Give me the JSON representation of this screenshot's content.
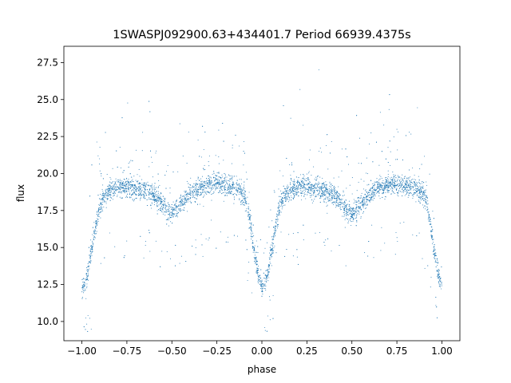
{
  "chart_data": {
    "type": "scatter",
    "title": "1SWASPJ092900.63+434401.7 Period 66939.4375s",
    "xlabel": "phase",
    "ylabel": "flux",
    "xlim": [
      -1.1,
      1.1
    ],
    "ylim": [
      8.7,
      28.6
    ],
    "xticks": [
      -1.0,
      -0.75,
      -0.5,
      -0.25,
      0.0,
      0.25,
      0.5,
      0.75,
      1.0
    ],
    "xtick_labels": [
      "−1.00",
      "−0.75",
      "−0.50",
      "−0.25",
      "0.00",
      "0.25",
      "0.50",
      "0.75",
      "1.00"
    ],
    "yticks": [
      10.0,
      12.5,
      15.0,
      17.5,
      20.0,
      22.5,
      25.0,
      27.5
    ],
    "ytick_labels": [
      "10.0",
      "12.5",
      "15.0",
      "17.5",
      "20.0",
      "22.5",
      "25.0",
      "27.5"
    ],
    "grid": false,
    "legend": "none",
    "point_color": "#1f77b4",
    "light_curve_profile": {
      "phase": [
        0.0,
        0.02,
        0.04,
        0.06,
        0.08,
        0.1,
        0.12,
        0.15,
        0.2,
        0.25,
        0.3,
        0.35,
        0.4,
        0.45,
        0.48,
        0.5,
        0.52,
        0.55,
        0.6,
        0.65,
        0.7,
        0.75,
        0.8,
        0.85,
        0.88,
        0.9,
        0.92,
        0.94,
        0.96,
        0.98,
        1.0
      ],
      "flux": [
        12.2,
        12.6,
        13.8,
        15.2,
        16.6,
        17.7,
        18.3,
        18.8,
        19.0,
        19.1,
        19.0,
        18.8,
        18.5,
        17.9,
        17.4,
        17.3,
        17.5,
        17.9,
        18.6,
        19.0,
        19.2,
        19.3,
        19.2,
        19.0,
        18.8,
        18.5,
        17.8,
        16.3,
        14.6,
        13.2,
        12.4
      ]
    }
  }
}
